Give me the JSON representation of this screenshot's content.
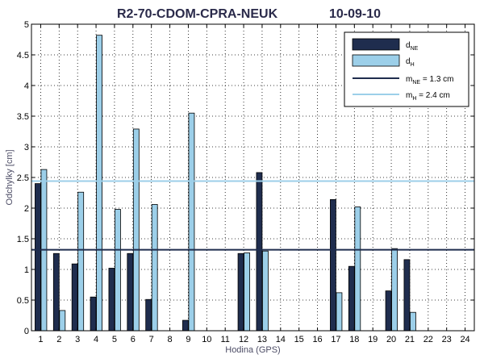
{
  "chart_data": {
    "type": "bar",
    "title": "R2-70-CDOM-CPRA-NEUK",
    "date": "10-09-10",
    "xlabel": "Hodina (GPS)",
    "ylabel": "Odchylky [cm]",
    "ylim": [
      0,
      5
    ],
    "yticks": [
      "0",
      "0.5",
      "1",
      "1.5",
      "2",
      "2.5",
      "3",
      "3.5",
      "4",
      "4.5",
      "5"
    ],
    "categories": [
      "1",
      "2",
      "3",
      "4",
      "5",
      "6",
      "7",
      "8",
      "9",
      "10",
      "11",
      "12",
      "13",
      "14",
      "15",
      "16",
      "17",
      "18",
      "19",
      "20",
      "21",
      "22",
      "23",
      "24"
    ],
    "grid": "dotted",
    "legend_position": "top-right",
    "series": [
      {
        "name": "d",
        "subscript": "NE",
        "color": "#1f2d4e",
        "values": [
          2.4,
          1.26,
          1.09,
          0.55,
          1.02,
          1.26,
          0.51,
          null,
          0.17,
          null,
          null,
          1.26,
          2.58,
          null,
          null,
          null,
          2.14,
          1.05,
          null,
          0.65,
          1.16,
          null,
          null,
          null
        ]
      },
      {
        "name": "d",
        "subscript": "H",
        "color": "#9ccfe9",
        "values": [
          2.63,
          0.33,
          2.26,
          4.82,
          1.98,
          3.29,
          2.06,
          null,
          3.55,
          null,
          null,
          1.27,
          1.3,
          null,
          null,
          null,
          0.62,
          2.02,
          null,
          1.34,
          0.3,
          null,
          null,
          null
        ]
      }
    ],
    "reference_lines": [
      {
        "name": "m",
        "subscript": "NE",
        "label_suffix": " = 1.3 cm",
        "value": 1.32,
        "color": "#1f2d4e"
      },
      {
        "name": "m",
        "subscript": "H",
        "label_suffix": "  = 2.4 cm",
        "value": 2.44,
        "color": "#9ccfe9"
      }
    ]
  }
}
